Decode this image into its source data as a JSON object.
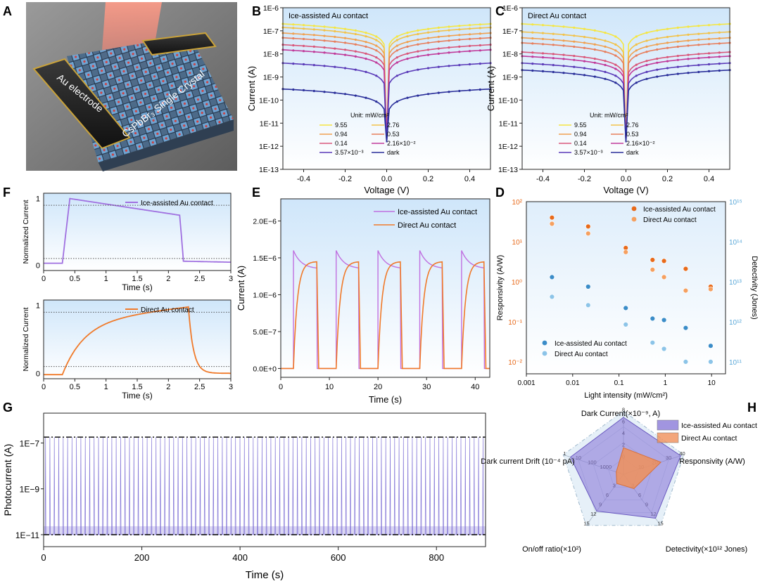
{
  "figure": {
    "panels": {
      "A": {
        "letter": "A",
        "label_electrode": "Au electrode",
        "label_crystal": "CsPbBr₃ Single Crystal"
      },
      "B": {
        "letter": "B"
      },
      "C": {
        "letter": "C"
      },
      "D": {
        "letter": "D"
      },
      "E": {
        "letter": "E"
      },
      "F": {
        "letter": "F"
      },
      "G": {
        "letter": "G"
      },
      "H": {
        "letter": "H"
      }
    }
  },
  "chart_data": [
    {
      "id": "B",
      "type": "line",
      "title": "Ice-assisted Au contact",
      "xlabel": "Voltage (V)",
      "ylabel": "Current (A)",
      "yscale": "log",
      "xlim": [
        -0.5,
        0.5
      ],
      "ylim": [
        1e-13,
        1e-06
      ],
      "xticks": [
        "-0.4",
        "-0.2",
        "0.0",
        "0.2",
        "0.4"
      ],
      "yticks": [
        "1E-13",
        "1E-12",
        "1E-11",
        "1E-10",
        "1E-9",
        "1E-8",
        "1E-7",
        "1E-6"
      ],
      "legend_title": "Unit: mW/cm²",
      "series": [
        {
          "name": "9.55",
          "color": "#f5e642",
          "i_at_0_5V": 2e-07
        },
        {
          "name": "2.76",
          "color": "#f2c24a",
          "i_at_0_5V": 1.4e-07
        },
        {
          "name": "0.94",
          "color": "#f0a050",
          "i_at_0_5V": 8e-08
        },
        {
          "name": "0.53",
          "color": "#e77e5c",
          "i_at_0_5V": 5e-08
        },
        {
          "name": "0.14",
          "color": "#d9567a",
          "i_at_0_5V": 2.5e-08
        },
        {
          "name": "2.16×10⁻²",
          "color": "#c03a9a",
          "i_at_0_5V": 1.5e-08
        },
        {
          "name": "3.57×10⁻³",
          "color": "#5a3ab8",
          "i_at_0_5V": 4e-09
        },
        {
          "name": "dark",
          "color": "#2a2f9a",
          "i_at_0_5V": 3e-10
        }
      ]
    },
    {
      "id": "C",
      "type": "line",
      "title": "Direct Au contact",
      "xlabel": "Voltage (V)",
      "ylabel": "Current (A)",
      "yscale": "log",
      "xlim": [
        -0.5,
        0.5
      ],
      "ylim": [
        1e-13,
        1e-06
      ],
      "xticks": [
        "-0.4",
        "-0.2",
        "0.0",
        "0.2",
        "0.4"
      ],
      "yticks": [
        "1E-13",
        "1E-12",
        "1E-11",
        "1E-10",
        "1E-9",
        "1E-8",
        "1E-7",
        "1E-6"
      ],
      "legend_title": "Unit: mW/cm²",
      "series": [
        {
          "name": "9.55",
          "color": "#f5e642",
          "i_at_0_5V": 2e-07
        },
        {
          "name": "2.76",
          "color": "#f2c24a",
          "i_at_0_5V": 9e-08
        },
        {
          "name": "0.94",
          "color": "#f0a050",
          "i_at_0_5V": 5e-08
        },
        {
          "name": "0.53",
          "color": "#e77e5c",
          "i_at_0_5V": 3e-08
        },
        {
          "name": "0.14",
          "color": "#d9567a",
          "i_at_0_5V": 1.2e-08
        },
        {
          "name": "2.16×10⁻²",
          "color": "#c03a9a",
          "i_at_0_5V": 8e-09
        },
        {
          "name": "3.57×10⁻³",
          "color": "#5a3ab8",
          "i_at_0_5V": 4e-09
        },
        {
          "name": "dark",
          "color": "#2a2f9a",
          "i_at_0_5V": 2e-09
        }
      ]
    },
    {
      "id": "F1",
      "type": "line",
      "title": "Ice-assisted Au contact",
      "xlabel": "Time (s)",
      "ylabel": "Normalized Current",
      "xlim": [
        0,
        3
      ],
      "ylim": [
        -0.08,
        1.08
      ],
      "xticks": [
        "0",
        "0.5",
        "1",
        "1.5",
        "2",
        "2.5",
        "3"
      ],
      "yticks": [
        "0",
        "1"
      ],
      "color": "#a070e0",
      "rise_start": 0.3,
      "rise_end": 0.42,
      "peak": 1.0,
      "decay_start": 2.18,
      "plateau_end": 0.75,
      "fall_end": 2.24
    },
    {
      "id": "F2",
      "type": "line",
      "title": "Direct Au contact",
      "xlabel": "Time (s)",
      "ylabel": "Normalized Current",
      "xlim": [
        0,
        3
      ],
      "ylim": [
        -0.08,
        1.08
      ],
      "xticks": [
        "0",
        "0.5",
        "1",
        "1.5",
        "2",
        "2.5",
        "3"
      ],
      "yticks": [
        "0",
        "1"
      ],
      "color": "#f07a2a",
      "rise_start": 0.3,
      "rise_90": 1.07,
      "decay_start": 2.32,
      "fall_90": 2.5
    },
    {
      "id": "E",
      "type": "line",
      "xlabel": "Time (s)",
      "ylabel": "Current (A)",
      "xlim": [
        0,
        43
      ],
      "ylim": [
        -1.2e-07,
        2.3e-06
      ],
      "xticks": [
        "0",
        "10",
        "20",
        "30",
        "40"
      ],
      "yticks": [
        "0.0E+0",
        "5.0E−7",
        "1.0E−6",
        "1.5E−6",
        "2.0E−6"
      ],
      "series": [
        {
          "name": "Ice-assisted Au contact",
          "color": "#c070e0",
          "peak": 1.6e-06,
          "plateau": 1.35e-06
        },
        {
          "name": "Direct Au contact",
          "color": "#f07a2a",
          "plateau": 1.45e-06
        }
      ],
      "pulses_on": [
        [
          2.6,
          7.4
        ],
        [
          11.4,
          16.0
        ],
        [
          20.0,
          24.6
        ],
        [
          28.6,
          33.2
        ],
        [
          37.2,
          41.8
        ]
      ]
    },
    {
      "id": "D",
      "type": "scatter",
      "xscale": "log",
      "yscale": "log",
      "xlabel": "Light intensity (mW/cm²)",
      "ylabel": "Responsivity (A/W)",
      "y2label": "Detectivity (Jones)",
      "xlim": [
        0.001,
        20
      ],
      "ylim": [
        0.005,
        100
      ],
      "y2lim": [
        50000000000.0,
        1000000000000000.0
      ],
      "xticks": [
        "0.001",
        "0.01",
        "0.1",
        "1",
        "10"
      ],
      "yticks": [
        "10⁻²",
        "10⁻¹",
        "10⁰",
        "10¹",
        "10²"
      ],
      "y2ticks": [
        "10¹¹",
        "10¹²",
        "10¹³",
        "10¹⁴",
        "10¹⁵"
      ],
      "x": [
        0.00357,
        0.0216,
        0.14,
        0.53,
        0.94,
        2.76,
        9.55
      ],
      "series": [
        {
          "name": "Ice-assisted Au contact",
          "axis": "left",
          "color": "#e86a1a",
          "values": [
            40,
            24,
            7,
            3.5,
            3.3,
            2.1,
            0.75
          ]
        },
        {
          "name": "Direct Au contact",
          "axis": "left",
          "color": "#f5a060",
          "values": [
            28,
            16,
            5.5,
            2,
            1.3,
            0.6,
            0.65
          ]
        },
        {
          "name": "Ice-assisted Au contact",
          "axis": "right",
          "color": "#3a8cc8",
          "values": [
            13000000000000.0,
            7500000000000.0,
            2200000000000.0,
            1200000000000.0,
            1100000000000.0,
            700000000000.0,
            250000000000.0
          ]
        },
        {
          "name": "Direct Au contact",
          "axis": "right",
          "color": "#8cc4e8",
          "values": [
            4200000000000.0,
            2600000000000.0,
            850000000000.0,
            300000000000.0,
            210000000000.0,
            100000000000.0,
            100000000000.0
          ]
        }
      ]
    },
    {
      "id": "G",
      "type": "line",
      "yscale": "log",
      "xlabel": "Time (s)",
      "ylabel": "Photocurrent (A)",
      "xlim": [
        0,
        900
      ],
      "ylim": [
        3e-12,
        2e-06
      ],
      "xticks": [
        "0",
        "200",
        "400",
        "600",
        "800"
      ],
      "yticks": [
        "1E−11",
        "1E−9",
        "1E−7"
      ],
      "high": 1.8e-07,
      "low": 1e-11,
      "pulse_period": 9,
      "color": "#7060d0"
    },
    {
      "id": "H",
      "type": "radar",
      "axes": [
        {
          "name": "Dark Current(×10⁻⁹, A)",
          "ticks": [
            "0",
            "2",
            "4",
            "6",
            "8"
          ]
        },
        {
          "name": "Responsivity (A/W)",
          "ticks": [
            "10",
            "20",
            "30",
            "40"
          ]
        },
        {
          "name": "Detectivity(×10¹² Jones)",
          "ticks": [
            "3",
            "6",
            "9",
            "12",
            "15"
          ]
        },
        {
          "name": "On/off ratio(×10²)",
          "ticks": [
            "3",
            "6",
            "9",
            "12",
            "15"
          ]
        },
        {
          "name": "Dark current Drift (10⁻⁴ pA)",
          "ticks": [
            "1000",
            "100",
            "10",
            "1"
          ]
        }
      ],
      "series": [
        {
          "name": "Ice-assisted Au contact",
          "color": "#8a7ad8",
          "values": [
            0.9,
            0.95,
            0.86,
            0.72,
            0.88
          ]
        },
        {
          "name": "Direct Au contact",
          "color": "#f0905a",
          "values": [
            0.42,
            0.62,
            0.28,
            0.18,
            0.12
          ]
        }
      ]
    }
  ]
}
